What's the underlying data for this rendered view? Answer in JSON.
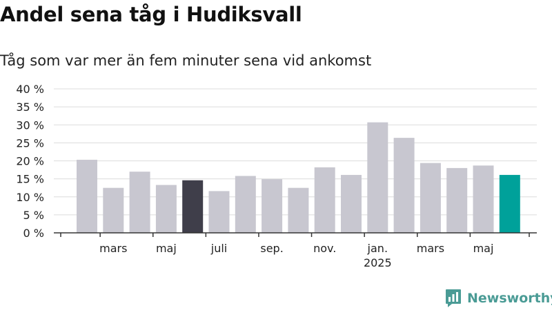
{
  "header": {
    "title": "Andel sena tåg i Hudiksvall",
    "subtitle": "Tåg som var mer än fem minuter sena vid ankomst"
  },
  "brand": {
    "name": "Newsworthy",
    "icon": "newsworthy-logo-icon",
    "color": "#4a9b95"
  },
  "colors": {
    "bar": "#c8c7d0",
    "highlight_dark": "#3f3e4a",
    "highlight_latest": "#00a19a",
    "grid": "#dcdcdc",
    "axis": "#333333"
  },
  "chart_data": {
    "type": "bar",
    "title": "Andel sena tåg i Hudiksvall",
    "subtitle": "Tåg som var mer än fem minuter sena vid ankomst",
    "xlabel": "",
    "ylabel": "",
    "ylim": [
      0,
      40
    ],
    "y_ticks": [
      0,
      5,
      10,
      15,
      20,
      25,
      30,
      35,
      40
    ],
    "y_tick_suffix": " %",
    "grid": true,
    "legend": "none",
    "categories": [
      "2024-02",
      "2024-03",
      "2024-04",
      "2024-05",
      "2024-06",
      "2024-07",
      "2024-08",
      "2024-09",
      "2024-10",
      "2024-11",
      "2024-12",
      "2025-01",
      "2025-02",
      "2025-03",
      "2025-04",
      "2025-05",
      "2025-06"
    ],
    "values": [
      20.3,
      12.5,
      17.0,
      13.3,
      14.6,
      11.6,
      15.8,
      14.9,
      12.5,
      18.2,
      16.1,
      30.7,
      26.4,
      19.4,
      18.0,
      18.7,
      16.1
    ],
    "highlight": {
      "2024-06": "dark",
      "2025-06": "latest"
    },
    "x_tick_labels": [
      {
        "at": "2024-03",
        "label": "mars"
      },
      {
        "at": "2024-05",
        "label": "maj"
      },
      {
        "at": "2024-07",
        "label": "juli"
      },
      {
        "at": "2024-09",
        "label": "sep."
      },
      {
        "at": "2024-11",
        "label": "nov."
      },
      {
        "at": "2025-01",
        "label": "jan.",
        "sublabel": "2025"
      },
      {
        "at": "2025-03",
        "label": "mars"
      },
      {
        "at": "2025-05",
        "label": "maj"
      }
    ]
  }
}
